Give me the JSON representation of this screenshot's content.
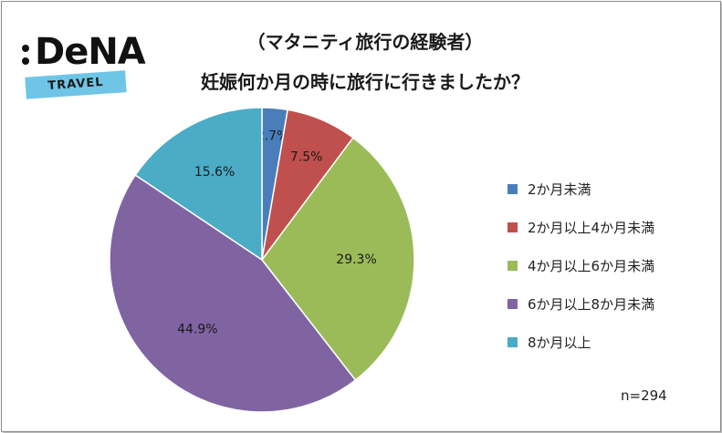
{
  "title_line1": "（マタニティ旅行の経験者）",
  "title_line2": "妊娠何か月の時に旅行に行きましたか？",
  "logo": {
    "word": "DeNA",
    "ribbon": "TRAVEL"
  },
  "note": "n=294",
  "chart_data": {
    "type": "pie",
    "categories": [
      "2か月未満",
      "2か月以上4か月未満",
      "4か月以上6か月未満",
      "6か月以上8か月未満",
      "8か月以上"
    ],
    "values": [
      2.7,
      7.5,
      29.3,
      44.9,
      15.6
    ],
    "labels": [
      "2.7%",
      "7.5%",
      "29.3%",
      "44.9%",
      "15.6%"
    ],
    "colors": [
      "#4a7ebb",
      "#c0504d",
      "#9bbb59",
      "#8064a2",
      "#4bacc6"
    ],
    "legend_position": "right"
  }
}
